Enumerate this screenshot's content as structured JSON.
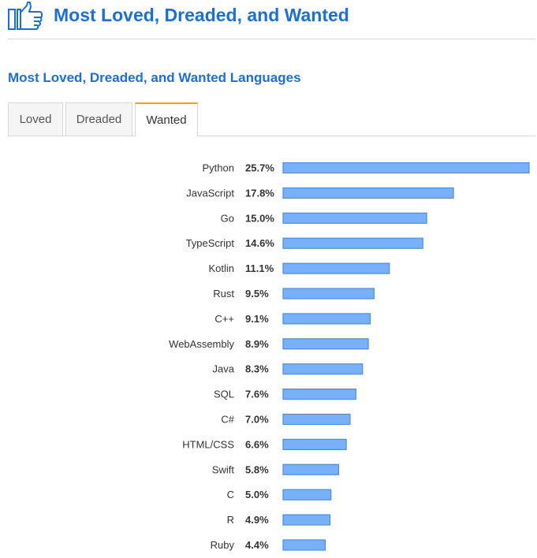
{
  "header": {
    "title": "Most Loved, Dreaded, and Wanted",
    "icon": "thumbs-up-icon"
  },
  "section": {
    "title": "Most Loved, Dreaded, and Wanted Languages"
  },
  "tabs": [
    {
      "label": "Loved",
      "active": false
    },
    {
      "label": "Dreaded",
      "active": false
    },
    {
      "label": "Wanted",
      "active": true
    }
  ],
  "colors": {
    "accent": "#1d6fd8",
    "bar_fill": "#78b1f7",
    "bar_stroke": "#4a8de8",
    "active_tab": "#f0a033"
  },
  "chart_data": {
    "type": "bar",
    "orientation": "horizontal",
    "categories": [
      "Python",
      "JavaScript",
      "Go",
      "TypeScript",
      "Kotlin",
      "Rust",
      "C++",
      "WebAssembly",
      "Java",
      "SQL",
      "C#",
      "HTML/CSS",
      "Swift",
      "C",
      "R",
      "Ruby"
    ],
    "values": [
      25.7,
      17.8,
      15.0,
      14.6,
      11.1,
      9.5,
      9.1,
      8.9,
      8.3,
      7.6,
      7.0,
      6.6,
      5.8,
      5.0,
      4.9,
      4.4
    ],
    "value_labels": [
      "25.7%",
      "17.8%",
      "15.0%",
      "14.6%",
      "11.1%",
      "9.5%",
      "9.1%",
      "8.9%",
      "8.3%",
      "7.6%",
      "7.0%",
      "6.6%",
      "5.8%",
      "5.0%",
      "4.9%",
      "4.4%"
    ],
    "unit": "%",
    "xlim": [
      0,
      25.7
    ],
    "grid": false,
    "legend": "none"
  }
}
